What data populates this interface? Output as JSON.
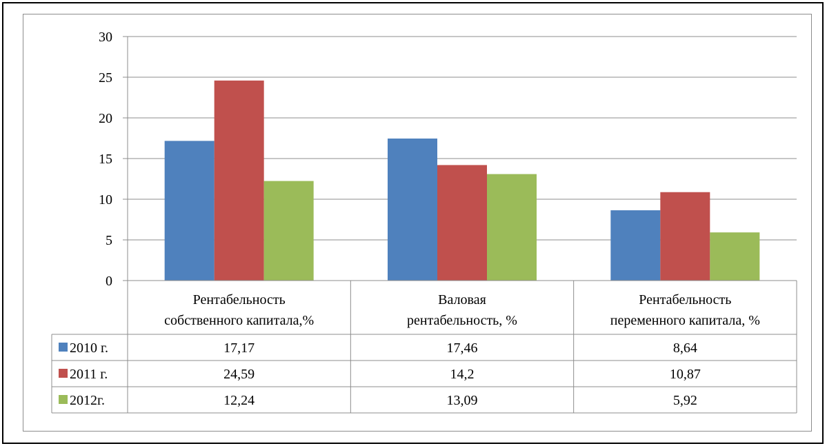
{
  "chart_data": {
    "type": "bar",
    "categories": [
      [
        "Рентабельность",
        "собственного капитала,%"
      ],
      [
        "Валовая",
        "рентабельность, %"
      ],
      [
        "Рентабельность",
        "переменного капитала, %"
      ]
    ],
    "series": [
      {
        "name": "2010 г.",
        "color": "#4f81bd",
        "values": [
          17.17,
          17.46,
          8.64
        ],
        "labels": [
          "17,17",
          "17,46",
          "8,64"
        ]
      },
      {
        "name": "2011 г.",
        "color": "#c0504d",
        "values": [
          24.59,
          14.2,
          10.87
        ],
        "labels": [
          "24,59",
          "14,2",
          "10,87"
        ]
      },
      {
        "name": "2012г.",
        "color": "#9bbb59",
        "values": [
          12.24,
          13.09,
          5.92
        ],
        "labels": [
          "12,24",
          "13,09",
          "5,92"
        ]
      }
    ],
    "yticks": [
      "0",
      "5",
      "10",
      "15",
      "20",
      "25",
      "30"
    ],
    "ylim": [
      0,
      30
    ],
    "grid": true,
    "legend": "data-table",
    "title": "",
    "xlabel": "",
    "ylabel": ""
  }
}
